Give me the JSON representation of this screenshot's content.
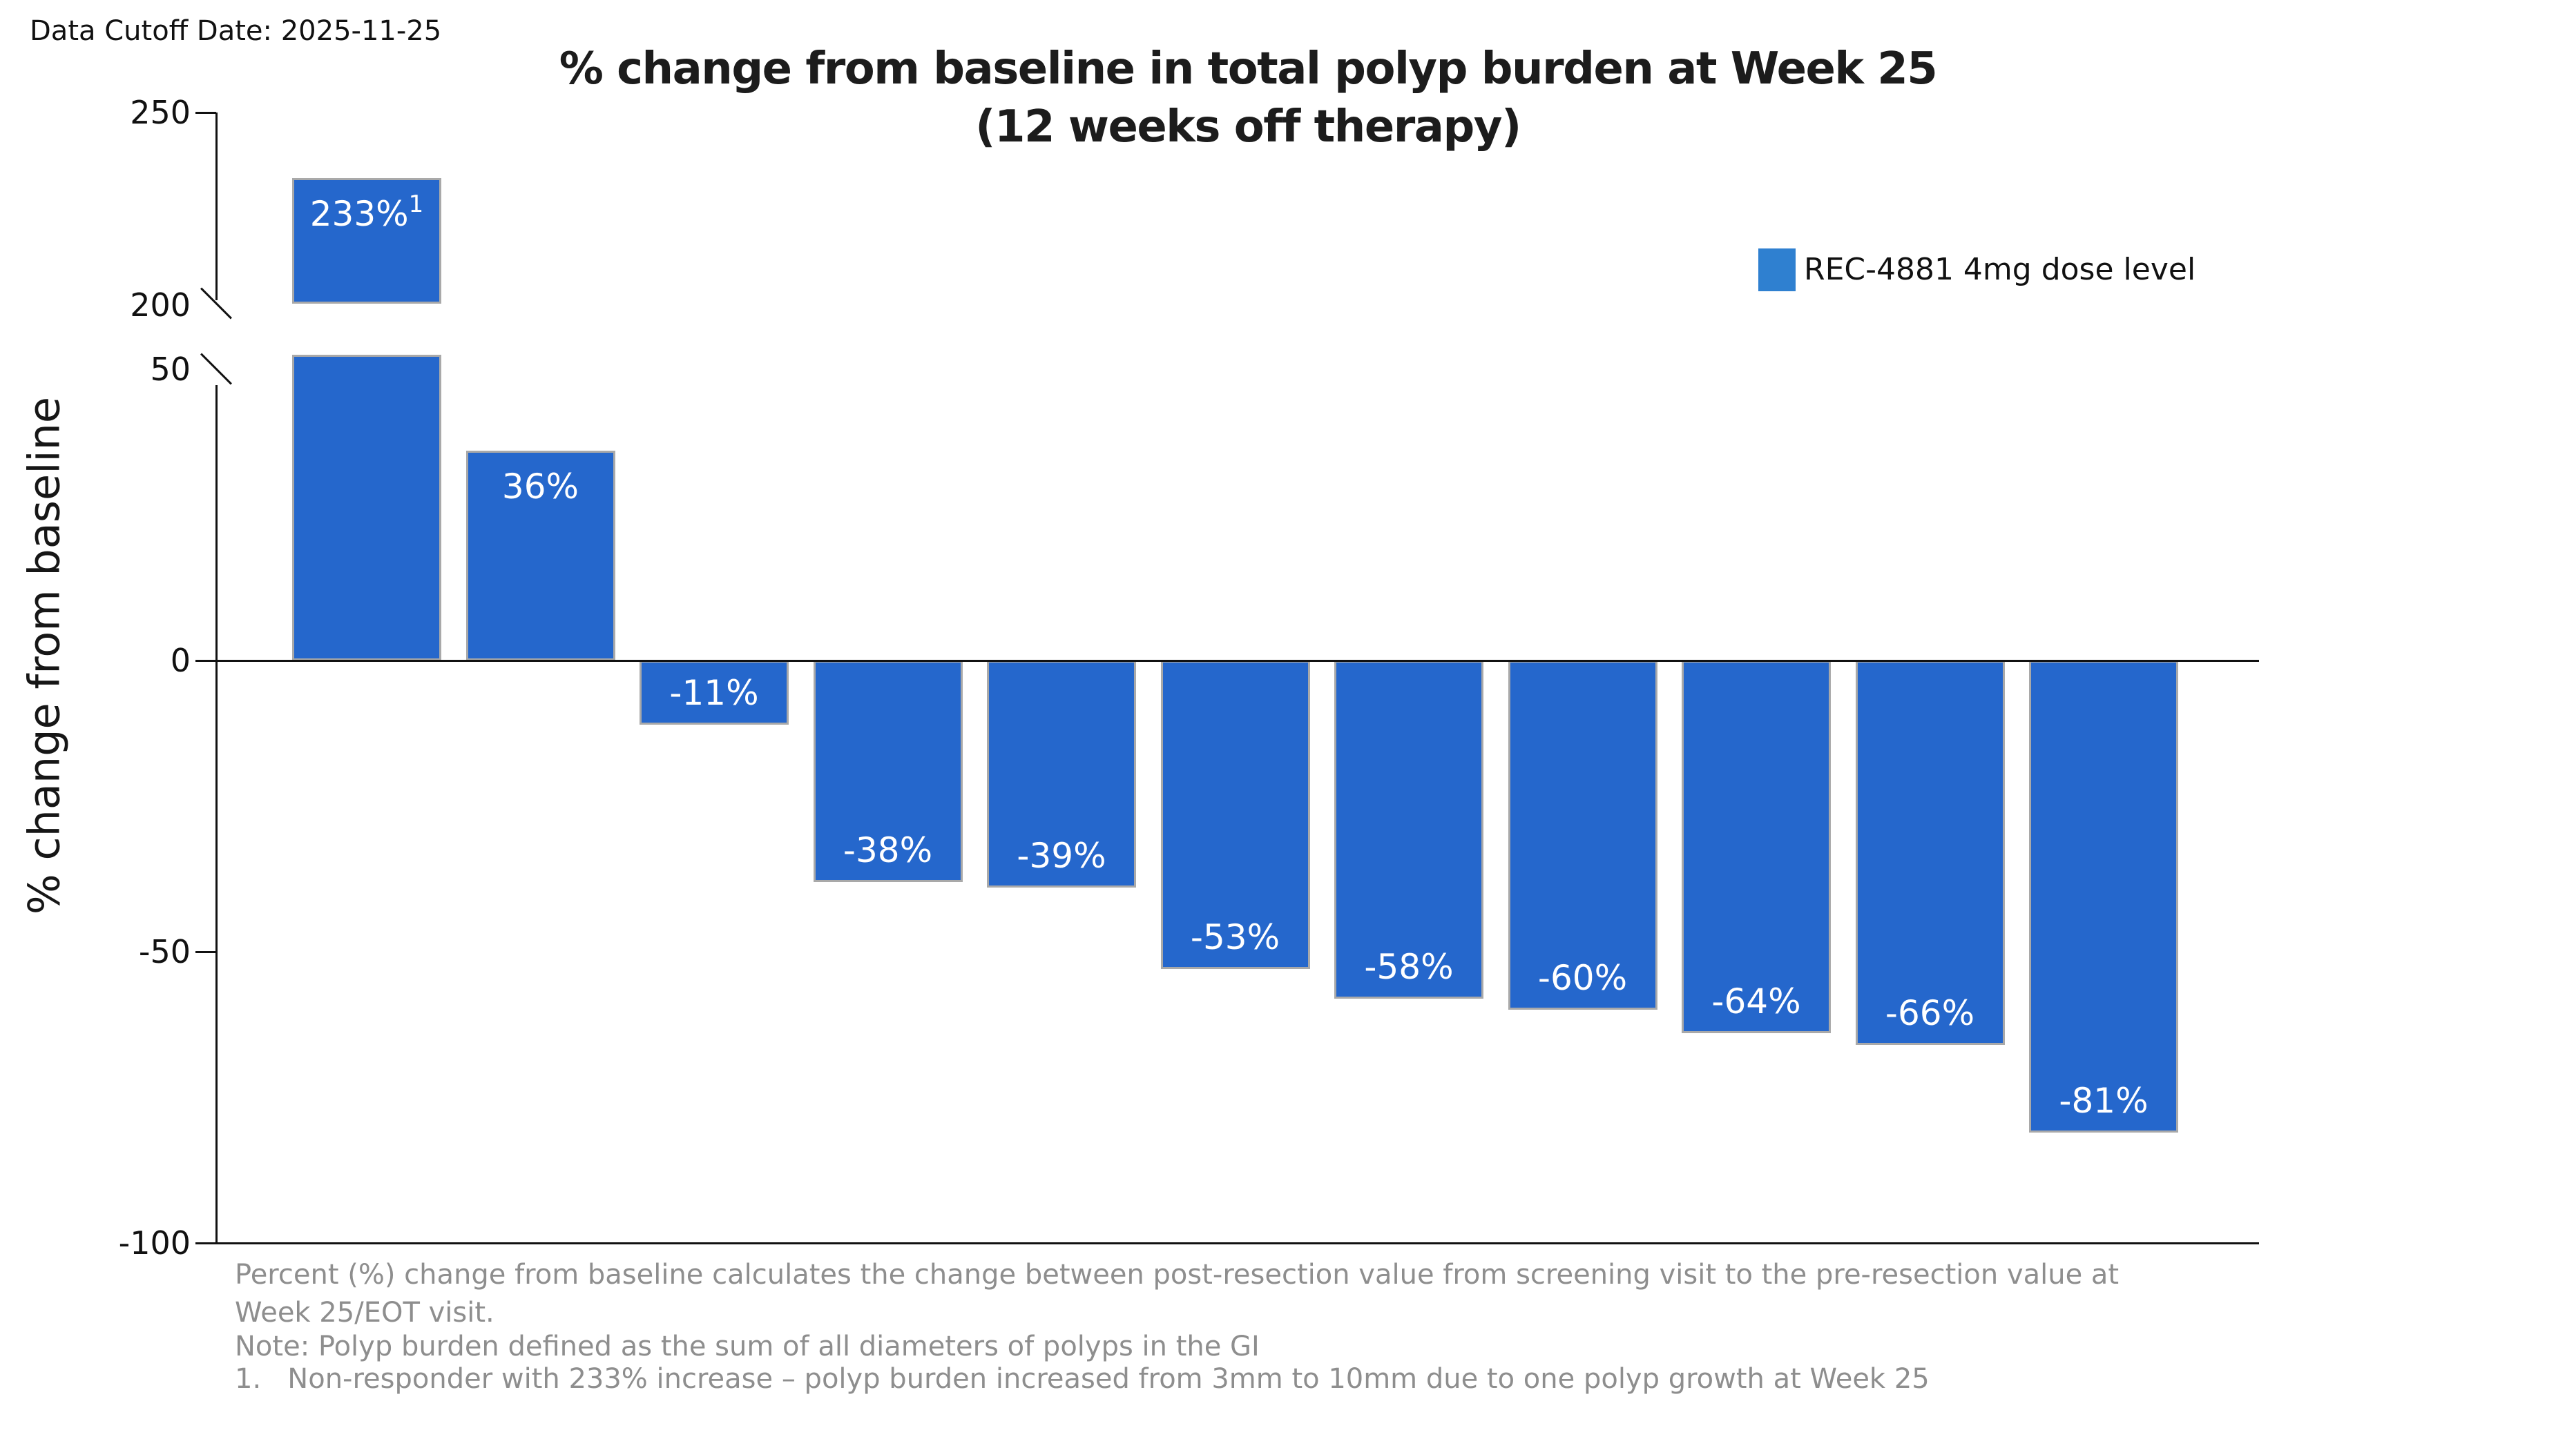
{
  "header": {
    "data_cutoff": "Data Cutoff Date: 2025-11-25"
  },
  "title": {
    "line1": "% change from baseline in total polyp burden at Week 25",
    "line2": "(12 weeks off therapy)"
  },
  "legend": {
    "label": "REC-4881 4mg dose level",
    "color": "#2F80D0"
  },
  "y_axis": {
    "label": "% change from baseline",
    "tick_labels": [
      "250",
      "200",
      "50",
      "0",
      "-50",
      "-100"
    ]
  },
  "chart_data": {
    "type": "bar",
    "title": "% change from baseline in total polyp burden at Week 25 (12 weeks off therapy)",
    "xlabel": "",
    "ylabel": "% change from baseline",
    "series": [
      {
        "name": "REC-4881 4mg dose level",
        "values": [
          233,
          36,
          -11,
          -38,
          -39,
          -53,
          -58,
          -60,
          -64,
          -66,
          -81
        ]
      }
    ],
    "bar_labels": [
      "233%",
      "36%",
      "-11%",
      "-38%",
      "-39%",
      "-53%",
      "-58%",
      "-60%",
      "-64%",
      "-66%",
      "-81%"
    ],
    "bar_label_superscripts": {
      "0": "1"
    },
    "bar_color": "#2567CC",
    "bar_edge_color": "#A9A9A9",
    "label_color": "#FFFFFF",
    "y_ticks": [
      250,
      200,
      50,
      0,
      -50,
      -100
    ],
    "axis_break": {
      "lower_segment": [
        -100,
        50
      ],
      "upper_segment": [
        200,
        250
      ]
    },
    "grid": false,
    "legend_position": "upper-right"
  },
  "footnotes": [
    "Percent (%) change from baseline calculates the change between post-resection value from screening visit to the pre-resection value at",
    "Week 25/EOT visit.",
    "Note: Polyp burden defined as the sum of all diameters of polyps in the GI",
    "1.   Non-responder with 233% increase – polyp burden increased from 3mm to 10mm due to one polyp growth at Week 25"
  ]
}
